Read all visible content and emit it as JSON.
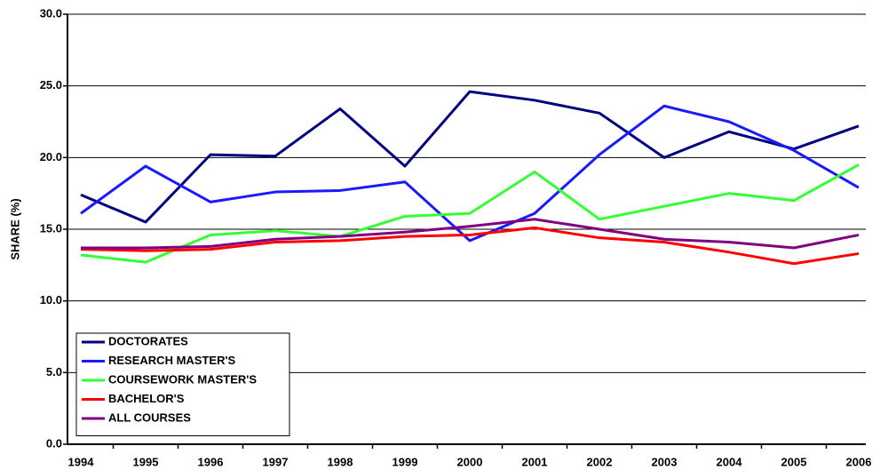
{
  "chart_data": {
    "type": "line",
    "y_label": "SHARE (%)",
    "categories": [
      "1994",
      "1995",
      "1996",
      "1997",
      "1998",
      "1999",
      "2000",
      "2001",
      "2002",
      "2003",
      "2004",
      "2005",
      "2006"
    ],
    "series": [
      {
        "name": "DOCTORATES",
        "color": "#000080",
        "values": [
          17.4,
          15.5,
          20.2,
          20.1,
          23.4,
          19.4,
          24.6,
          24.0,
          23.1,
          20.0,
          21.8,
          20.6,
          22.2
        ]
      },
      {
        "name": "RESEARCH MASTER'S",
        "color": "#1a1aff",
        "values": [
          16.1,
          19.4,
          16.9,
          17.6,
          17.7,
          18.3,
          14.2,
          16.1,
          20.2,
          23.6,
          22.5,
          20.5,
          17.9
        ]
      },
      {
        "name": "COURSEWORK MASTER'S",
        "color": "#33ff33",
        "values": [
          13.2,
          12.7,
          14.6,
          14.9,
          14.5,
          15.9,
          16.1,
          19.0,
          15.7,
          16.6,
          17.5,
          17.0,
          19.5
        ]
      },
      {
        "name": "BACHELOR'S",
        "color": "#ff0000",
        "values": [
          13.6,
          13.5,
          13.6,
          14.1,
          14.2,
          14.5,
          14.6,
          15.1,
          14.4,
          14.1,
          13.4,
          12.6,
          13.3
        ]
      },
      {
        "name": "ALL COURSES",
        "color": "#800080",
        "values": [
          13.7,
          13.7,
          13.8,
          14.3,
          14.5,
          14.8,
          15.2,
          15.7,
          15.0,
          14.3,
          14.1,
          13.7,
          14.6
        ]
      }
    ],
    "ylim": [
      0,
      30
    ],
    "yticks": [
      {
        "value": 0,
        "label": "0.0"
      },
      {
        "value": 5,
        "label": "5.0"
      },
      {
        "value": 10,
        "label": "10.0"
      },
      {
        "value": 15,
        "label": "15.0"
      },
      {
        "value": 20,
        "label": "20.0"
      },
      {
        "value": 25,
        "label": "25.0"
      },
      {
        "value": 30,
        "label": "30.0"
      }
    ],
    "grid": true,
    "legend": "lower left"
  }
}
